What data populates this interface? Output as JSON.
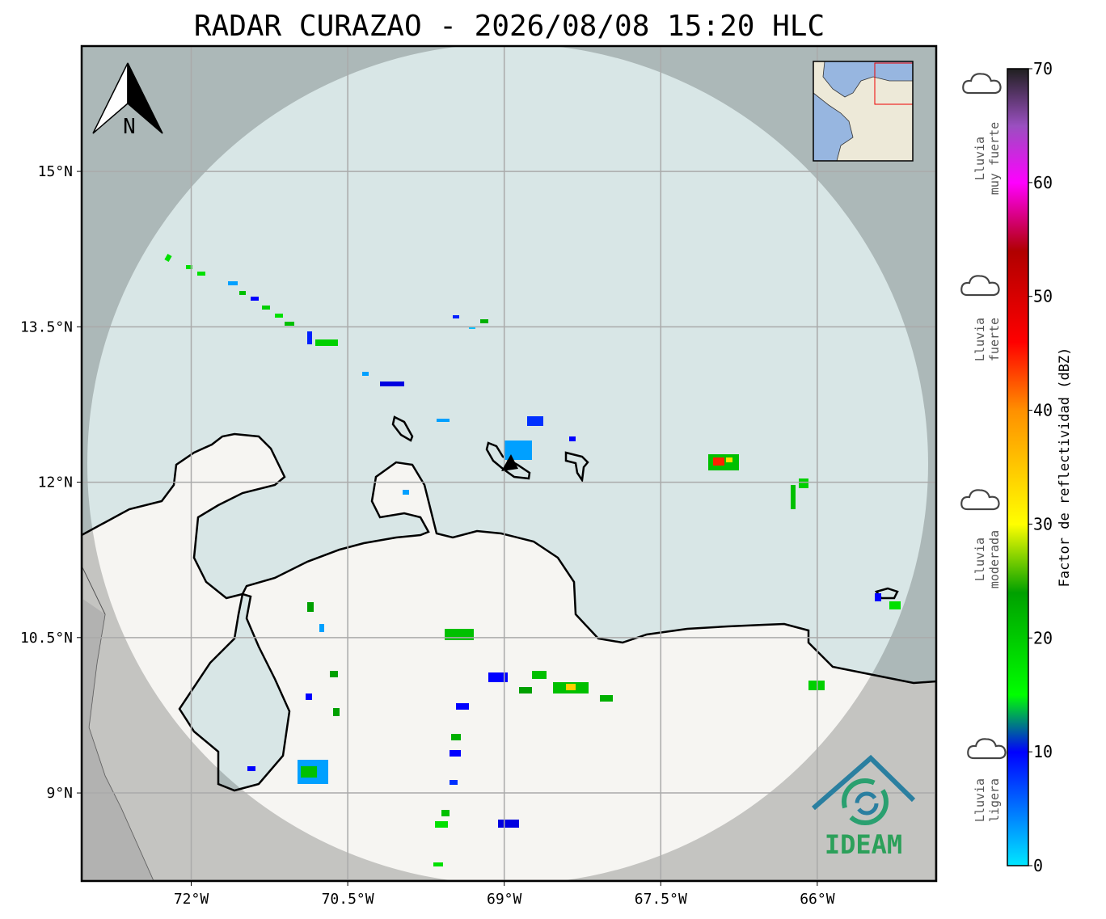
{
  "title": "RADAR CURAZAO - 2026/08/08 15:20 HLC",
  "map": {
    "xlim": [
      -73.05,
      -64.86
    ],
    "ylim": [
      8.15,
      16.21
    ],
    "grid": true,
    "north_label": "N",
    "xticks": [
      {
        "value": -72,
        "label": "72°W"
      },
      {
        "value": -70.5,
        "label": "70.5°W"
      },
      {
        "value": -69,
        "label": "69°W"
      },
      {
        "value": -67.5,
        "label": "67.5°W"
      },
      {
        "value": -66,
        "label": "66°W"
      }
    ],
    "yticks": [
      {
        "value": 15,
        "label": "15°N"
      },
      {
        "value": 13.5,
        "label": "13.5°N"
      },
      {
        "value": 12,
        "label": "12°N"
      },
      {
        "value": 10.5,
        "label": "10.5°N"
      },
      {
        "value": 9,
        "label": "9°N"
      }
    ]
  },
  "colorbar": {
    "label": "Factor de reflectividad (dBZ)",
    "lim": [
      0,
      70
    ],
    "ticks": [
      0,
      10,
      20,
      30,
      40,
      50,
      60,
      70
    ],
    "stops": [
      {
        "value": 0,
        "color": "#00e8ff"
      },
      {
        "value": 10,
        "color": "#0000ff"
      },
      {
        "value": 15,
        "color": "#00ff00"
      },
      {
        "value": 24,
        "color": "#00a000"
      },
      {
        "value": 30,
        "color": "#ffff00"
      },
      {
        "value": 40,
        "color": "#ff9000"
      },
      {
        "value": 46,
        "color": "#ff0000"
      },
      {
        "value": 54,
        "color": "#b00000"
      },
      {
        "value": 60,
        "color": "#ff00ff"
      },
      {
        "value": 65,
        "color": "#9a4fc0"
      },
      {
        "value": 70,
        "color": "#202020"
      }
    ]
  },
  "rain_levels": [
    {
      "lines": [
        "Lluvia",
        "muy fuerte"
      ]
    },
    {
      "lines": [
        "Lluvia",
        "fuerte"
      ]
    },
    {
      "lines": [
        "Lluvia",
        "moderada"
      ]
    },
    {
      "lines": [
        "Lluvia",
        "ligera"
      ]
    }
  ],
  "logo": "IDEAM"
}
